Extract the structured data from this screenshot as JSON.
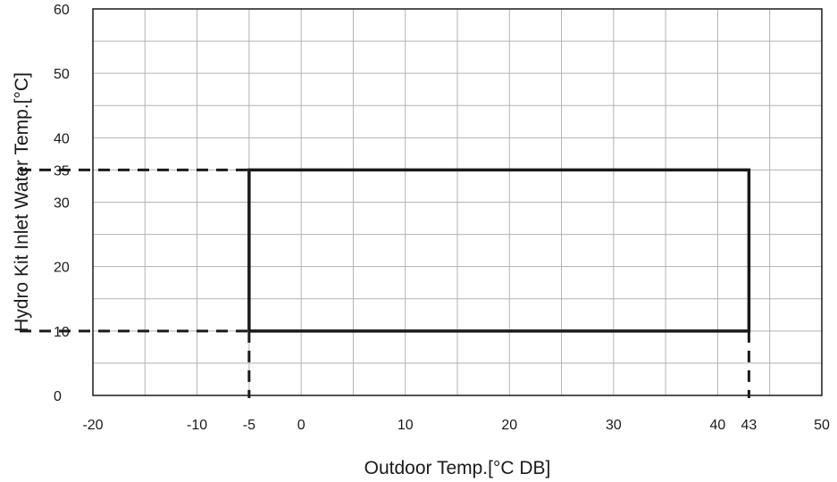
{
  "chart_data": {
    "type": "line",
    "title": "",
    "xlabel": "Outdoor Temp.[°C DB]",
    "ylabel": "Hydro Kit Inlet Water Temp.[°C]",
    "xlim": [
      -20,
      50
    ],
    "ylim": [
      0,
      60
    ],
    "x_tick_labels": [
      "-20",
      "-10",
      "-5",
      "0",
      "10",
      "20",
      "30",
      "40",
      "43",
      "50"
    ],
    "x_tick_values": [
      -20,
      -10,
      -5,
      0,
      10,
      20,
      30,
      40,
      43,
      50
    ],
    "y_tick_labels": [
      "0",
      "10",
      "20",
      "30",
      "35",
      "40",
      "50",
      "60"
    ],
    "y_tick_values": [
      0,
      10,
      20,
      30,
      35,
      40,
      50,
      60
    ],
    "grid": true,
    "x_grid_step": 5,
    "y_grid_step": 5,
    "series": [
      {
        "style": "solid",
        "color": "#1a1a1a",
        "points": [
          [
            -5,
            10
          ],
          [
            -5,
            35
          ],
          [
            43,
            35
          ],
          [
            43,
            10
          ],
          [
            -5,
            10
          ]
        ]
      }
    ],
    "dashed_guides": [
      {
        "from": [
          -20,
          35
        ],
        "to": [
          -5,
          35
        ]
      },
      {
        "from": [
          -20,
          10
        ],
        "to": [
          -5,
          10
        ]
      },
      {
        "from": [
          -5,
          10
        ],
        "to": [
          -5,
          0
        ]
      },
      {
        "from": [
          43,
          10
        ],
        "to": [
          43,
          0
        ]
      }
    ],
    "colors": {
      "grid": "#b3b3b3",
      "axis": "#1a1a1a",
      "series": "#1a1a1a"
    }
  }
}
